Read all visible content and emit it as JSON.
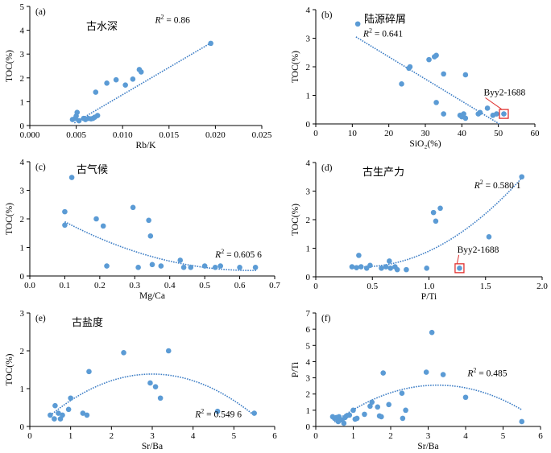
{
  "colors": {
    "point": "#5b9bd5",
    "trend": "#3f7fc6",
    "axis": "#000000",
    "callout": "#e0312f"
  },
  "chart_data": [
    {
      "type": "scatter",
      "panel_label": "(a)",
      "title": "古水深",
      "xlabel": "Rb/K",
      "ylabel": "TOC(%)",
      "xlim": [
        0,
        0.025
      ],
      "ylim": [
        0,
        5
      ],
      "xticks": [
        0,
        0.005,
        0.01,
        0.015,
        0.02,
        0.025
      ],
      "xtick_labels": [
        "0.000",
        "0.005",
        "0.010",
        "0.015",
        "0.020",
        "0.025"
      ],
      "yticks": [
        0,
        1,
        2,
        3,
        4,
        5
      ],
      "ytick_labels": [
        "0",
        "1",
        "2",
        "3",
        "4",
        "5"
      ],
      "grid": false,
      "trend": {
        "type": "linear",
        "x_from": 0.0048,
        "x_to": 0.0195,
        "slope": 228.5,
        "intercept": -0.99
      },
      "r2_text": {
        "prefix": "R",
        "sup": "2",
        "rest": " = 0.86",
        "at": [
          0.0135,
          4.3
        ]
      },
      "points": [
        [
          0.0046,
          0.25
        ],
        [
          0.0049,
          0.3
        ],
        [
          0.005,
          0.4
        ],
        [
          0.0051,
          0.55
        ],
        [
          0.0053,
          0.2
        ],
        [
          0.0058,
          0.3
        ],
        [
          0.006,
          0.25
        ],
        [
          0.0063,
          0.3
        ],
        [
          0.0066,
          0.28
        ],
        [
          0.0068,
          0.3
        ],
        [
          0.007,
          0.35
        ],
        [
          0.0073,
          0.42
        ],
        [
          0.0071,
          1.4
        ],
        [
          0.0083,
          1.78
        ],
        [
          0.0093,
          1.92
        ],
        [
          0.0103,
          1.7
        ],
        [
          0.0111,
          1.95
        ],
        [
          0.0118,
          2.35
        ],
        [
          0.012,
          2.25
        ],
        [
          0.0195,
          3.45
        ]
      ]
    },
    {
      "type": "scatter",
      "panel_label": "(b)",
      "title": "陆源碎屑",
      "xlabel": "SiO₂(%)",
      "ylabel": "TOC(%)",
      "xlim": [
        0,
        60
      ],
      "ylim": [
        0,
        4
      ],
      "xticks": [
        0,
        10,
        20,
        30,
        40,
        50,
        60
      ],
      "xtick_labels": [
        "0",
        "10",
        "20",
        "30",
        "40",
        "50",
        "60"
      ],
      "yticks": [
        0,
        1,
        2,
        3,
        4
      ],
      "ytick_labels": [
        "0",
        "1",
        "2",
        "3",
        "4"
      ],
      "grid": false,
      "trend": {
        "type": "linear",
        "x_from": 11,
        "x_to": 50.5,
        "slope": -0.0776,
        "intercept": 3.9
      },
      "r2_text": {
        "prefix": "R",
        "sup": "2",
        "rest": " = 0.641",
        "at": [
          13,
          3.05
        ]
      },
      "callout": {
        "text": "Byy2-1688",
        "point": [
          51.5,
          0.35
        ],
        "text_at": [
          46,
          1.0
        ]
      },
      "points": [
        [
          11.5,
          3.5
        ],
        [
          23.5,
          1.4
        ],
        [
          25.5,
          1.95
        ],
        [
          25.8,
          2.0
        ],
        [
          31,
          2.25
        ],
        [
          32.5,
          2.35
        ],
        [
          33,
          2.4
        ],
        [
          35,
          1.75
        ],
        [
          33,
          0.75
        ],
        [
          35,
          0.35
        ],
        [
          39.5,
          0.3
        ],
        [
          40,
          0.25
        ],
        [
          40.5,
          0.35
        ],
        [
          41,
          0.2
        ],
        [
          41,
          1.72
        ],
        [
          44.5,
          0.35
        ],
        [
          45,
          0.4
        ],
        [
          47,
          0.55
        ],
        [
          48.5,
          0.3
        ],
        [
          49.5,
          0.35
        ],
        [
          51.5,
          0.35
        ]
      ]
    },
    {
      "type": "scatter",
      "panel_label": "(c)",
      "title": "古气候",
      "xlabel": "Mg/Ca",
      "ylabel": "TOC(%)",
      "xlim": [
        0,
        0.7
      ],
      "ylim": [
        0,
        4
      ],
      "xticks": [
        0,
        0.1,
        0.2,
        0.3,
        0.4,
        0.5,
        0.6,
        0.7
      ],
      "xtick_labels": [
        "0.0",
        "0.1",
        "0.2",
        "0.3",
        "0.4",
        "0.5",
        "0.6",
        "0.7"
      ],
      "yticks": [
        0,
        1,
        2,
        3,
        4
      ],
      "ytick_labels": [
        "0",
        "1",
        "2",
        "3",
        "4"
      ],
      "grid": false,
      "trend": {
        "type": "quadratic",
        "x_from": 0.1,
        "x_to": 0.65,
        "a": 6.0,
        "b": -7.6,
        "c": 2.6
      },
      "r2_text": {
        "prefix": "R",
        "sup": "2",
        "rest": " = 0.605 6",
        "at": [
          0.53,
          0.65
        ]
      },
      "points": [
        [
          0.1,
          2.25
        ],
        [
          0.1,
          1.78
        ],
        [
          0.12,
          3.45
        ],
        [
          0.19,
          2.0
        ],
        [
          0.21,
          1.75
        ],
        [
          0.22,
          0.35
        ],
        [
          0.295,
          2.4
        ],
        [
          0.31,
          0.3
        ],
        [
          0.34,
          1.95
        ],
        [
          0.345,
          1.4
        ],
        [
          0.35,
          0.4
        ],
        [
          0.375,
          0.35
        ],
        [
          0.43,
          0.55
        ],
        [
          0.44,
          0.3
        ],
        [
          0.46,
          0.3
        ],
        [
          0.5,
          0.35
        ],
        [
          0.53,
          0.3
        ],
        [
          0.545,
          0.35
        ],
        [
          0.6,
          0.3
        ],
        [
          0.645,
          0.3
        ]
      ]
    },
    {
      "type": "scatter",
      "panel_label": "(d)",
      "title": "古生产力",
      "xlabel": "P/Ti",
      "ylabel": "TOC(%)",
      "xlim": [
        0,
        2
      ],
      "ylim": [
        0,
        4
      ],
      "xticks": [
        0,
        0.5,
        1.0,
        1.5,
        2.0
      ],
      "xtick_labels": [
        "0",
        "0.5",
        "1.0",
        "1.5",
        "2.0"
      ],
      "yticks": [
        0,
        1,
        2,
        3,
        4
      ],
      "ytick_labels": [
        "0",
        "1",
        "2",
        "3",
        "4"
      ],
      "grid": false,
      "trend": {
        "type": "quadratic",
        "x_from": 0.3,
        "x_to": 1.82,
        "a": 1.55,
        "b": -1.25,
        "c": 0.6
      },
      "r2_text": {
        "prefix": "R",
        "sup": "2",
        "rest": " = 0.580 1",
        "at": [
          1.4,
          3.1
        ]
      },
      "callout": {
        "text": "Byy2-1688",
        "point": [
          1.27,
          0.3
        ],
        "text_at": [
          1.25,
          0.85
        ]
      },
      "points": [
        [
          0.32,
          0.35
        ],
        [
          0.36,
          0.32
        ],
        [
          0.38,
          0.75
        ],
        [
          0.4,
          0.35
        ],
        [
          0.45,
          0.3
        ],
        [
          0.48,
          0.4
        ],
        [
          0.58,
          0.3
        ],
        [
          0.62,
          0.35
        ],
        [
          0.65,
          0.55
        ],
        [
          0.66,
          0.3
        ],
        [
          0.7,
          0.35
        ],
        [
          0.72,
          0.25
        ],
        [
          0.8,
          0.25
        ],
        [
          0.98,
          0.3
        ],
        [
          1.04,
          2.25
        ],
        [
          1.06,
          1.95
        ],
        [
          1.1,
          2.4
        ],
        [
          1.27,
          0.3
        ],
        [
          1.53,
          1.4
        ],
        [
          1.82,
          3.5
        ]
      ]
    },
    {
      "type": "scatter",
      "panel_label": "(e)",
      "title": "古盐度",
      "xlabel": "Sr/Ba",
      "ylabel": "TOC(%)",
      "xlim": [
        0,
        6
      ],
      "ylim": [
        0,
        3
      ],
      "xticks": [
        0,
        1,
        2,
        3,
        4,
        5,
        6
      ],
      "xtick_labels": [
        "0",
        "1",
        "2",
        "3",
        "4",
        "5",
        "6"
      ],
      "yticks": [
        0,
        1,
        2,
        3
      ],
      "ytick_labels": [
        "0",
        "1",
        "2",
        "3"
      ],
      "grid": false,
      "trend": {
        "type": "quadratic",
        "x_from": 0.5,
        "x_to": 5.5,
        "a": -0.175,
        "b": 1.05,
        "c": -0.19
      },
      "r2_text": {
        "prefix": "R",
        "sup": "2",
        "rest": " = 0.549 6",
        "at": [
          4.05,
          0.25
        ]
      },
      "points": [
        [
          0.5,
          0.3
        ],
        [
          0.6,
          0.2
        ],
        [
          0.62,
          0.55
        ],
        [
          0.7,
          0.35
        ],
        [
          0.75,
          0.2
        ],
        [
          0.8,
          0.3
        ],
        [
          0.95,
          0.45
        ],
        [
          1.0,
          0.75
        ],
        [
          1.3,
          0.35
        ],
        [
          1.4,
          0.3
        ],
        [
          1.45,
          1.45
        ],
        [
          2.3,
          1.95
        ],
        [
          2.95,
          1.15
        ],
        [
          3.08,
          1.05
        ],
        [
          3.2,
          0.75
        ],
        [
          3.4,
          2.0
        ],
        [
          4.6,
          0.4
        ],
        [
          5.5,
          0.35
        ]
      ]
    },
    {
      "type": "scatter",
      "panel_label": "(f)",
      "title": "",
      "xlabel": "Sr/Ba",
      "ylabel": "P/Ti",
      "xlim": [
        0,
        6
      ],
      "ylim": [
        0,
        7
      ],
      "xticks": [
        0,
        1,
        2,
        3,
        4,
        5,
        6
      ],
      "xtick_labels": [
        "0",
        "1",
        "2",
        "3",
        "4",
        "5",
        "6"
      ],
      "yticks": [
        0,
        1,
        2,
        3,
        4,
        5,
        6,
        7
      ],
      "ytick_labels": [
        "0",
        "1",
        "2",
        "3",
        "4",
        "5",
        "6",
        "7"
      ],
      "grid": false,
      "trend": {
        "type": "quadratic",
        "x_from": 0.5,
        "x_to": 5.5,
        "a": -0.3,
        "b": 1.95,
        "c": -0.62
      },
      "r2_text": {
        "prefix": "R",
        "sup": "2",
        "rest": " = 0.485",
        "at": [
          4.05,
          3.1
        ]
      },
      "points": [
        [
          0.45,
          0.6
        ],
        [
          0.5,
          0.5
        ],
        [
          0.55,
          0.55
        ],
        [
          0.6,
          0.3
        ],
        [
          0.62,
          0.6
        ],
        [
          0.7,
          0.4
        ],
        [
          0.75,
          0.2
        ],
        [
          0.78,
          0.55
        ],
        [
          0.82,
          0.65
        ],
        [
          0.9,
          0.7
        ],
        [
          1.0,
          1.0
        ],
        [
          1.05,
          0.45
        ],
        [
          1.1,
          0.5
        ],
        [
          1.3,
          0.75
        ],
        [
          1.45,
          1.25
        ],
        [
          1.5,
          1.5
        ],
        [
          1.65,
          1.2
        ],
        [
          1.7,
          0.65
        ],
        [
          1.75,
          0.6
        ],
        [
          1.8,
          3.3
        ],
        [
          1.95,
          1.35
        ],
        [
          2.3,
          2.05
        ],
        [
          2.32,
          0.5
        ],
        [
          2.4,
          1.0
        ],
        [
          2.95,
          3.35
        ],
        [
          3.1,
          5.8
        ],
        [
          3.4,
          3.2
        ],
        [
          4.0,
          1.8
        ],
        [
          5.5,
          0.3
        ]
      ]
    }
  ]
}
